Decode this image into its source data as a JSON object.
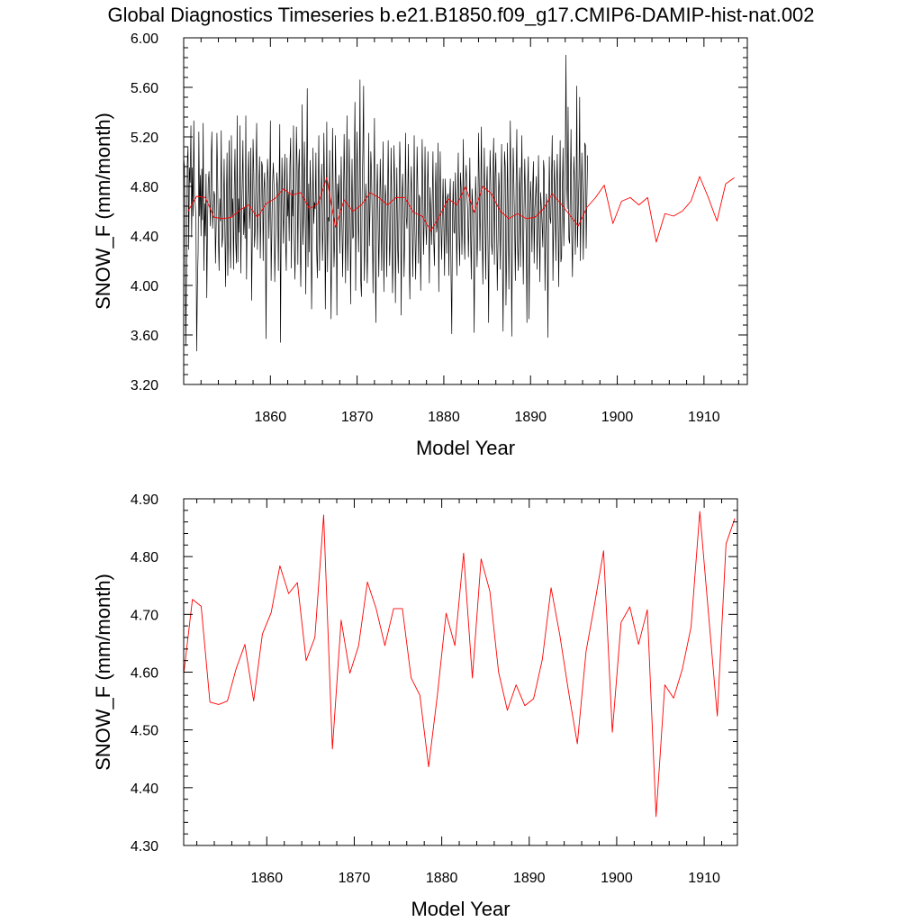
{
  "title": "Global Diagnostics Timeseries b.e21.B1850.f09_g17.CMIP6-DAMIP-hist-nat.002",
  "colors": {
    "monthly": "#000000",
    "annual": "#ff0000",
    "axis": "#000000"
  },
  "chart_data": [
    {
      "type": "line",
      "xlabel": "Model Year",
      "ylabel": "SNOW_F (mm/month)",
      "xlim": [
        1850.0,
        1915.0
      ],
      "ylim": [
        3.2,
        6.0
      ],
      "xticks": [
        1860,
        1870,
        1880,
        1890,
        1900,
        1910
      ],
      "xtick_labels": [
        "1860",
        "1870",
        "1880",
        "1890",
        "1900",
        "1910"
      ],
      "yticks": [
        3.2,
        3.6,
        4.0,
        4.4,
        4.8,
        5.2,
        5.6,
        6.0
      ],
      "ytick_labels": [
        "3.20",
        "3.60",
        "4.00",
        "4.40",
        "4.80",
        "5.20",
        "5.60",
        "6.00"
      ],
      "series": [
        {
          "color": "#000000",
          "x_start": 1850.0,
          "x_step": 0.0833333,
          "values": [
            5.04,
            4.96,
            4.41,
            3.51,
            4.18,
            4.98,
            5.12,
            4.29,
            4.95,
            4.83,
            5.29,
            4.39,
            4.95,
            4.56,
            5.33,
            4.72,
            4.66,
            4.54,
            3.47,
            3.99,
            4.27,
            5.24,
            4.56,
            4.89,
            4.4,
            4.94,
            4.53,
            5.31,
            4.12,
            4.66,
            4.4,
            4.9,
            3.9,
            4.47,
            4.83,
            4.92,
            4.69,
            4.48,
            5.01,
            5.24,
            4.46,
            4.61,
            4.76,
            4.72,
            4.18,
            4.5,
            5.23,
            4.86,
            4.38,
            4.12,
            4.7,
            4.52,
            5.25,
            4.31,
            4.39,
            4.59,
            5.02,
            4.44,
            3.99,
            4.66,
            5.07,
            4.08,
            4.47,
            5.17,
            4.38,
            4.14,
            5.21,
            4.56,
            4.7,
            4.13,
            4.78,
            5.1,
            4.35,
            4.18,
            5.37,
            4.19,
            4.7,
            4.43,
            5.29,
            4.1,
            4.55,
            4.82,
            5.17,
            4.41,
            4.63,
            4.38,
            5.37,
            4.05,
            4.63,
            4.84,
            5.08,
            4.46,
            4.63,
            5.11,
            3.88,
            4.4,
            5.18,
            4.91,
            4.31,
            4.45,
            4.92,
            5.31,
            4.29,
            4.58,
            4.81,
            5.04,
            4.22,
            4.6,
            5.0,
            4.96,
            4.2,
            4.77,
            4.91,
            4.52,
            3.57,
            4.55,
            5.02,
            4.85,
            4.38,
            4.74,
            5.33,
            4.04,
            4.42,
            4.83,
            4.99,
            4.81,
            4.03,
            4.35,
            4.57,
            4.91,
            4.75,
            4.12,
            4.79,
            5.3,
            3.54,
            4.49,
            5.03,
            4.67,
            4.34,
            4.82,
            5.06,
            4.35,
            4.12,
            5.03,
            4.56,
            4.74,
            4.36,
            4.98,
            5.19,
            4.14,
            4.77,
            4.56,
            5.29,
            4.38,
            4.05,
            4.46,
            5.28,
            4.95,
            4.17,
            4.92,
            5.1,
            4.49,
            3.99,
            4.43,
            5.46,
            4.33,
            4.58,
            5.16,
            4.69,
            3.93,
            4.72,
            5.59,
            4.15,
            4.82,
            4.27,
            5.01,
            4.73,
            3.81,
            4.34,
            5.11,
            4.5,
            4.67,
            4.62,
            5.07,
            4.28,
            4.06,
            4.74,
            5.21,
            4.12,
            4.62,
            4.75,
            4.98,
            4.2,
            4.47,
            5.23,
            4.77,
            3.81,
            4.48,
            5.32,
            4.11,
            4.55,
            4.52,
            5.09,
            4.4,
            3.73,
            4.45,
            5.27,
            4.72,
            4.15,
            4.38,
            5.21,
            4.73,
            3.76,
            4.82,
            4.62,
            4.89,
            4.26,
            4.58,
            5.04,
            4.49,
            4.07,
            4.59,
            5.22,
            4.75,
            4.02,
            4.71,
            5.37,
            4.12,
            4.47,
            5.18,
            4.75,
            3.85,
            4.53,
            5.02,
            4.38,
            4.4,
            4.97,
            5.48,
            3.96,
            4.78,
            5.24,
            4.61,
            4.27,
            4.75,
            5.66,
            4.04,
            3.91,
            4.75,
            5.11,
            5.61,
            4.04,
            4.35,
            4.82,
            4.64,
            4.02,
            4.32,
            5.23,
            4.32,
            4.65,
            5.08,
            4.89,
            4.47,
            3.94,
            4.75,
            5.35,
            4.23,
            3.7,
            4.61,
            4.98,
            4.57,
            4.07,
            4.51,
            5.02,
            4.69,
            4.12,
            4.66,
            5.16,
            3.95,
            4.4,
            4.81,
            4.69,
            4.07,
            4.6,
            5.17,
            4.62,
            4.16,
            4.4,
            5.11,
            4.65,
            3.94,
            4.29,
            5.13,
            4.81,
            3.86,
            4.44,
            4.95,
            4.33,
            4.1,
            4.66,
            5.16,
            4.88,
            3.76,
            4.63,
            4.9,
            4.62,
            4.07,
            4.39,
            5.23,
            4.55,
            4.46,
            4.72,
            5.14,
            4.24,
            3.89,
            4.69,
            4.96,
            4.58,
            4.07,
            4.49,
            5.21,
            4.46,
            4.05,
            4.48,
            5.12,
            4.78,
            4.18,
            4.73,
            4.7,
            3.96,
            4.42,
            5.18,
            4.78,
            4.25,
            4.57,
            5.12,
            4.49,
            4.33,
            4.66,
            5.08,
            4.62,
            4.02,
            4.79,
            4.59,
            4.33,
            4.68,
            5.08,
            4.37,
            4.16,
            4.67,
            4.99,
            4.43,
            4.49,
            5.15,
            3.95,
            4.62,
            5.08,
            4.51,
            4.21,
            4.57,
            4.86,
            4.48,
            4.08,
            4.86,
            4.63,
            4.26,
            4.71,
            4.74,
            4.08,
            4.68,
            4.86,
            4.06,
            3.61,
            4.55,
            4.84,
            4.43,
            4.42,
            4.91,
            4.59,
            4.08,
            4.7,
            5.07,
            4.4,
            4.16,
            4.91,
            4.79,
            4.25,
            4.59,
            5.18,
            4.43,
            4.21,
            4.83,
            4.97,
            4.74,
            4.61,
            4.23,
            4.58,
            5.03,
            4.42,
            4.05,
            4.78,
            4.66,
            4.37,
            3.62,
            4.41,
            4.88,
            4.65,
            4.15,
            4.44,
            5.23,
            4.82,
            4.28,
            4.69,
            5.28,
            4.44,
            4.01,
            4.62,
            5.11,
            4.53,
            4.05,
            4.75,
            4.96,
            4.38,
            3.7,
            4.57,
            5.09,
            4.82,
            4.34,
            4.25,
            4.94,
            5.19,
            4.17,
            4.88,
            5.07,
            4.49,
            3.96,
            4.35,
            4.91,
            4.75,
            4.13,
            4.71,
            5.14,
            4.26,
            3.63,
            4.45,
            5.08,
            4.96,
            3.84,
            4.28,
            5.15,
            4.6,
            3.97,
            4.62,
            5.33,
            4.71,
            3.59,
            4.44,
            5.11,
            4.81,
            4.47,
            4.04,
            4.82,
            5.26,
            4.33,
            4.12,
            4.72,
            4.95,
            4.15,
            4.7,
            5.21,
            4.53,
            4.01,
            4.62,
            5.02,
            4.69,
            4.38,
            3.7,
            4.82,
            5.04,
            3.73,
            4.45,
            4.84,
            4.66,
            4.27,
            4.79,
            5.0,
            4.18,
            4.62,
            4.73,
            4.88,
            4.13,
            4.49,
            5.05,
            4.48,
            4.03,
            4.75,
            4.64,
            4.49,
            4.31,
            5.01,
            4.92,
            3.96,
            4.42,
            4.74,
            4.6,
            3.58,
            4.51,
            5.04,
            4.55,
            4.5,
            4.85,
            5.21,
            4.04,
            4.48,
            5.01,
            4.75,
            4.2,
            4.79,
            5.06,
            4.54,
            3.99,
            4.65,
            5.17,
            4.19,
            4.23,
            4.78,
            5.11,
            4.32,
            4.65,
            4.92,
            5.86,
            4.85,
            4.62,
            5.44,
            4.38,
            4.34,
            4.73,
            5.26,
            4.41,
            4.07,
            4.62,
            5.04,
            4.83,
            4.25,
            4.59,
            5.61,
            4.31,
            4.61,
            4.86,
            5.52,
            4.2,
            4.63,
            5.07,
            4.73,
            4.21,
            4.68,
            5.15,
            5.13,
            4.3,
            4.71,
            5.05
          ]
        },
        {
          "color": "#ff0000",
          "x_start": 1850.5,
          "x_step": 1.0,
          "values": [
            4.6,
            4.72,
            4.71,
            4.55,
            4.54,
            4.55,
            4.61,
            4.65,
            4.55,
            4.66,
            4.7,
            4.78,
            4.73,
            4.75,
            4.62,
            4.66,
            4.87,
            4.47,
            4.69,
            4.6,
            4.65,
            4.75,
            4.71,
            4.65,
            4.71,
            4.71,
            4.59,
            4.56,
            4.44,
            4.56,
            4.7,
            4.65,
            4.8,
            4.59,
            4.8,
            4.74,
            4.6,
            4.54,
            4.58,
            4.54,
            4.55,
            4.62,
            4.74,
            4.66,
            4.57,
            4.48,
            4.63,
            4.71,
            4.81,
            4.5,
            4.68,
            4.71,
            4.65,
            4.71,
            4.35,
            4.58,
            4.56,
            4.6,
            4.68,
            4.88,
            4.71,
            4.52,
            4.82,
            4.87
          ]
        }
      ]
    },
    {
      "type": "line",
      "xlabel": "Model Year",
      "ylabel": "SNOW_F (mm/month)",
      "xlim": [
        1850.5,
        1913.8
      ],
      "ylim": [
        4.3,
        4.9
      ],
      "xticks": [
        1860,
        1870,
        1880,
        1890,
        1900,
        1910
      ],
      "xtick_labels": [
        "1860",
        "1870",
        "1880",
        "1890",
        "1900",
        "1910"
      ],
      "yticks": [
        4.3,
        4.4,
        4.5,
        4.6,
        4.7,
        4.8,
        4.9
      ],
      "ytick_labels": [
        "4.30",
        "4.40",
        "4.50",
        "4.60",
        "4.70",
        "4.80",
        "4.90"
      ],
      "series": [
        {
          "color": "#ff0000",
          "x_start": 1850.5,
          "x_step": 1.0,
          "values": [
            4.596,
            4.726,
            4.714,
            4.548,
            4.544,
            4.55,
            4.606,
            4.648,
            4.55,
            4.666,
            4.703,
            4.784,
            4.736,
            4.755,
            4.62,
            4.66,
            4.872,
            4.467,
            4.69,
            4.598,
            4.646,
            4.756,
            4.71,
            4.646,
            4.71,
            4.71,
            4.59,
            4.56,
            4.436,
            4.56,
            4.702,
            4.646,
            4.806,
            4.59,
            4.796,
            4.74,
            4.6,
            4.534,
            4.578,
            4.542,
            4.554,
            4.622,
            4.746,
            4.664,
            4.566,
            4.476,
            4.636,
            4.72,
            4.81,
            4.496,
            4.686,
            4.713,
            4.648,
            4.708,
            4.35,
            4.578,
            4.555,
            4.605,
            4.678,
            4.878,
            4.7,
            4.524,
            4.822,
            4.866
          ]
        }
      ]
    }
  ]
}
